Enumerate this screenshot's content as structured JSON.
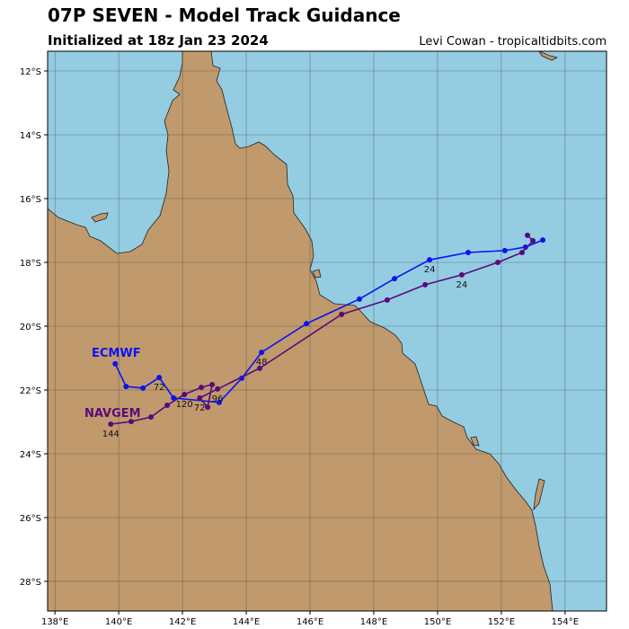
{
  "chart_data": {
    "type": "track",
    "title": "07P SEVEN - Model Track Guidance",
    "subtitle": "Initialized at 18z Jan 23 2024",
    "credit": "Levi Cowan - tropicaltidbits.com",
    "xlim": [
      137.77,
      155.3
    ],
    "ylim": [
      -28.93,
      -11.38
    ],
    "xticks": [
      {
        "value": 138,
        "label": "138°E"
      },
      {
        "value": 140,
        "label": "140°E"
      },
      {
        "value": 142,
        "label": "142°E"
      },
      {
        "value": 144,
        "label": "144°E"
      },
      {
        "value": 146,
        "label": "146°E"
      },
      {
        "value": 148,
        "label": "148°E"
      },
      {
        "value": 150,
        "label": "150°E"
      },
      {
        "value": 152,
        "label": "152°E"
      },
      {
        "value": 154,
        "label": "154°E"
      }
    ],
    "yticks": [
      {
        "value": -12,
        "label": "12°S"
      },
      {
        "value": -14,
        "label": "14°S"
      },
      {
        "value": -16,
        "label": "16°S"
      },
      {
        "value": -18,
        "label": "18°S"
      },
      {
        "value": -20,
        "label": "20°S"
      },
      {
        "value": -22,
        "label": "22°S"
      },
      {
        "value": -24,
        "label": "24°S"
      },
      {
        "value": -26,
        "label": "26°S"
      },
      {
        "value": -28,
        "label": "28°S"
      }
    ],
    "grid": true,
    "series": [
      {
        "name": "ECMWF",
        "color": "#0a14f0",
        "x": [
          153.3,
          152.76,
          152.11,
          150.96,
          149.75,
          148.65,
          147.55,
          145.89,
          144.48,
          143.86,
          143.15,
          141.72,
          141.27,
          140.76,
          140.23,
          139.89
        ],
        "values": [
          -17.3,
          -17.52,
          -17.63,
          -17.69,
          -17.92,
          -18.51,
          -19.15,
          -19.92,
          -20.82,
          -21.63,
          -22.39,
          -22.25,
          -21.61,
          -21.94,
          -21.89,
          -21.18
        ],
        "point_labels": [
          null,
          null,
          null,
          null,
          24,
          null,
          null,
          null,
          48,
          null,
          null,
          null,
          72,
          null,
          null,
          null
        ]
      },
      {
        "name": "NAVGEM",
        "color": "#5a0a7c",
        "x": [
          152.82,
          152.99,
          152.65,
          151.89,
          150.76,
          149.61,
          148.42,
          146.99,
          144.42,
          143.1,
          142.54,
          142.79,
          142.93,
          142.59,
          142.06,
          141.52,
          141.01,
          140.39,
          139.75
        ],
        "values": [
          -17.15,
          -17.32,
          -17.69,
          -18.0,
          -18.39,
          -18.7,
          -19.18,
          -19.63,
          -21.32,
          -21.97,
          -22.25,
          -22.54,
          -21.83,
          -21.92,
          -22.14,
          -22.48,
          -22.85,
          -22.99,
          -23.07
        ],
        "point_labels": [
          null,
          null,
          null,
          null,
          24,
          null,
          null,
          null,
          null,
          96,
          72,
          null,
          null,
          null,
          120,
          null,
          null,
          null,
          144
        ]
      }
    ]
  }
}
